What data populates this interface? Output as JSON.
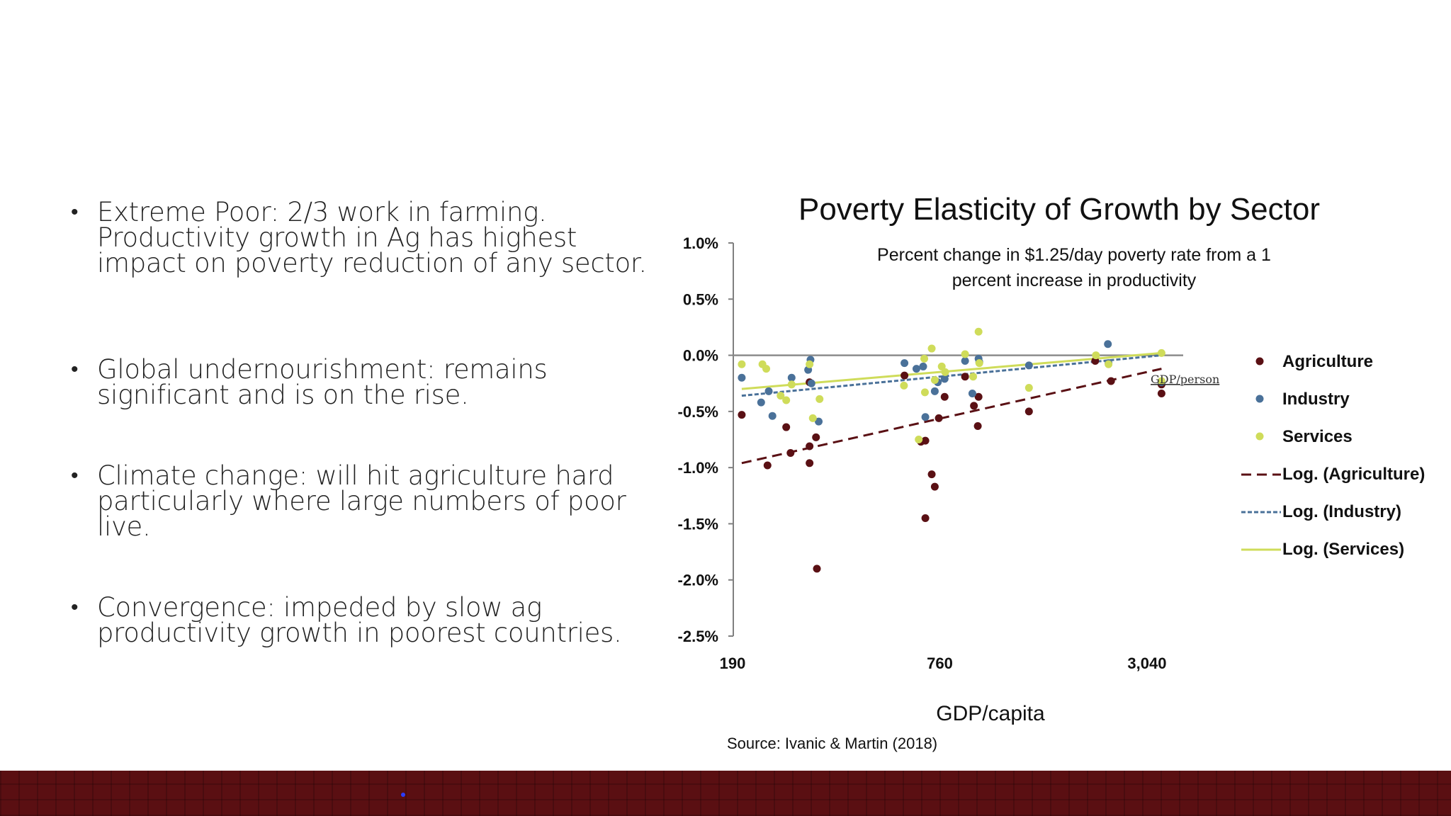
{
  "bullets": [
    "Extreme Poor:  2/3 work in farming. Productivity growth in Ag has highest impact on poverty reduction of any sector.",
    "Global undernourishment: remains significant and is on the rise.",
    "Climate change:  will hit agriculture hard particularly where large numbers of poor live.",
    "Convergence: impeded by slow ag productivity growth in poorest countries."
  ],
  "source": "Source: Ivanic & Martin (2018)",
  "colors": {
    "agriculture": "#5a1014",
    "industry": "#4a7199",
    "services": "#cfdc5a",
    "axis": "#808080",
    "footer": "#5a0f12"
  },
  "chart_data": {
    "type": "scatter",
    "title": "Poverty Elasticity of Growth by Sector",
    "subtitle": "Percent change in $1.25/day poverty rate from a 1 percent increase in productivity",
    "xlabel": "GDP/capita",
    "axis_annotation": "GDP/person",
    "x_scale": "log",
    "xlim": [
      190,
      3800
    ],
    "ylim": [
      -2.5,
      1.0
    ],
    "x_ticks": [
      190,
      760,
      3040
    ],
    "x_tick_labels": [
      "190",
      "760",
      "3,040"
    ],
    "y_ticks": [
      1.0,
      0.5,
      0.0,
      -0.5,
      -1.0,
      -1.5,
      -2.0,
      -2.5
    ],
    "y_tick_labels": [
      "1.0%",
      "0.5%",
      "0.0%",
      "-0.5%",
      "-1.0%",
      "-1.5%",
      "-2.0%",
      "-2.5%"
    ],
    "legend_position": "right",
    "series": [
      {
        "name": "Agriculture",
        "kind": "scatter",
        "color": "#5a1014",
        "points": [
          [
            202,
            -0.53
          ],
          [
            240,
            -0.98
          ],
          [
            272,
            -0.64
          ],
          [
            280,
            -0.87
          ],
          [
            318,
            -0.96
          ],
          [
            318,
            -0.81
          ],
          [
            332,
            -0.73
          ],
          [
            334,
            -1.9
          ],
          [
            318,
            -0.24
          ],
          [
            600,
            -0.18
          ],
          [
            670,
            -0.77
          ],
          [
            690,
            -0.76
          ],
          [
            690,
            -1.45
          ],
          [
            720,
            -1.06
          ],
          [
            735,
            -1.17
          ],
          [
            755,
            -0.56
          ],
          [
            785,
            -0.37
          ],
          [
            900,
            -0.19
          ],
          [
            955,
            -0.45
          ],
          [
            985,
            -0.37
          ],
          [
            980,
            -0.63
          ],
          [
            1380,
            -0.5
          ],
          [
            2150,
            -0.05
          ],
          [
            2390,
            -0.23
          ],
          [
            3350,
            -0.34
          ],
          [
            3350,
            -0.26
          ]
        ]
      },
      {
        "name": "Industry",
        "kind": "scatter",
        "color": "#4a7199",
        "points": [
          [
            202,
            -0.2
          ],
          [
            230,
            -0.42
          ],
          [
            242,
            -0.32
          ],
          [
            248,
            -0.54
          ],
          [
            282,
            -0.2
          ],
          [
            315,
            -0.13
          ],
          [
            320,
            -0.04
          ],
          [
            322,
            -0.25
          ],
          [
            338,
            -0.59
          ],
          [
            600,
            -0.07
          ],
          [
            650,
            -0.12
          ],
          [
            680,
            -0.1
          ],
          [
            690,
            -0.55
          ],
          [
            735,
            -0.32
          ],
          [
            750,
            -0.24
          ],
          [
            785,
            -0.21
          ],
          [
            900,
            -0.05
          ],
          [
            945,
            -0.34
          ],
          [
            985,
            -0.03
          ],
          [
            990,
            -0.06
          ],
          [
            1380,
            -0.09
          ],
          [
            2340,
            0.1
          ],
          [
            2350,
            -0.07
          ],
          [
            3350,
            -0.24
          ]
        ]
      },
      {
        "name": "Services",
        "kind": "scatter",
        "color": "#cfdc5a",
        "points": [
          [
            202,
            -0.08
          ],
          [
            232,
            -0.08
          ],
          [
            238,
            -0.12
          ],
          [
            262,
            -0.36
          ],
          [
            272,
            -0.4
          ],
          [
            282,
            -0.26
          ],
          [
            318,
            -0.08
          ],
          [
            325,
            -0.56
          ],
          [
            340,
            -0.39
          ],
          [
            598,
            -0.27
          ],
          [
            660,
            -0.75
          ],
          [
            685,
            -0.03
          ],
          [
            688,
            -0.33
          ],
          [
            720,
            0.06
          ],
          [
            735,
            -0.22
          ],
          [
            770,
            -0.1
          ],
          [
            788,
            -0.15
          ],
          [
            900,
            0.01
          ],
          [
            950,
            -0.19
          ],
          [
            985,
            0.21
          ],
          [
            990,
            -0.07
          ],
          [
            1380,
            -0.29
          ],
          [
            2160,
            0.0
          ],
          [
            2350,
            -0.08
          ],
          [
            3350,
            0.02
          ],
          [
            3350,
            -0.23
          ]
        ]
      },
      {
        "name": "Log. (Agriculture)",
        "kind": "trendline",
        "color": "#5a1014",
        "dash": "dashed",
        "points": [
          [
            202,
            -0.96
          ],
          [
            3350,
            -0.12
          ]
        ]
      },
      {
        "name": "Log. (Industry)",
        "kind": "trendline",
        "color": "#4a7199",
        "dash": "dotted",
        "points": [
          [
            202,
            -0.36
          ],
          [
            3350,
            0.0
          ]
        ]
      },
      {
        "name": "Log. (Services)",
        "kind": "trendline",
        "color": "#cfdc5a",
        "dash": "solid",
        "points": [
          [
            202,
            -0.3
          ],
          [
            3350,
            0.02
          ]
        ]
      }
    ]
  }
}
